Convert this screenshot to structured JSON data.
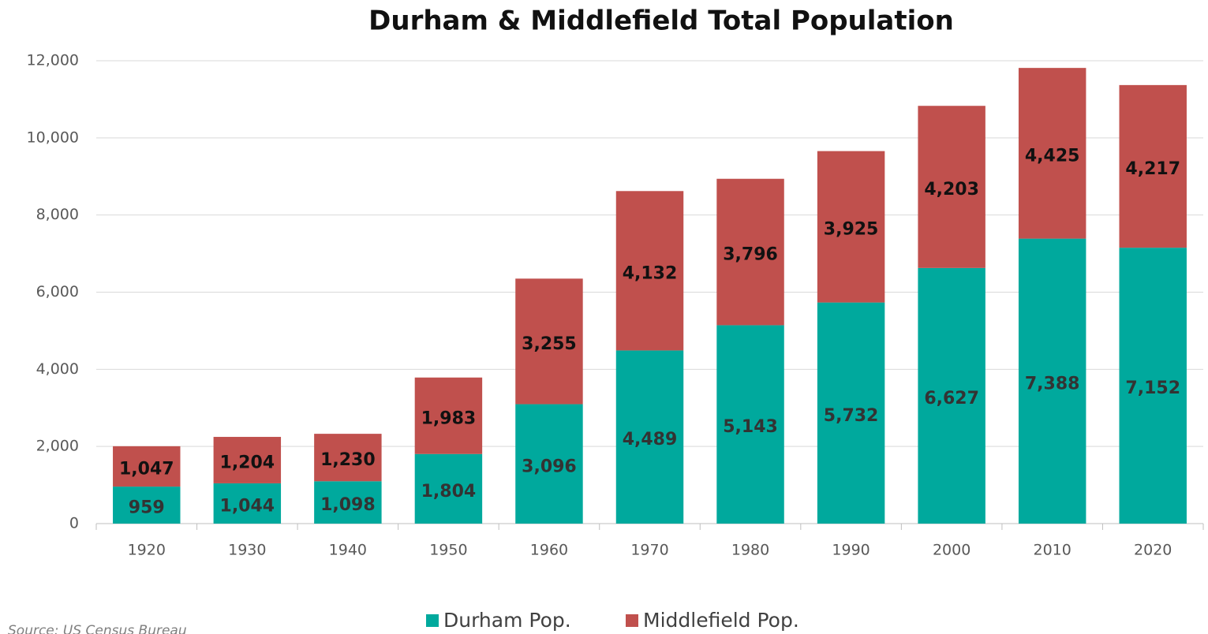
{
  "chart_data": {
    "type": "bar",
    "stacked": true,
    "title": "Durham & Middlefield Total Population",
    "source": "Source: US Census Bureau",
    "categories": [
      "1920",
      "1930",
      "1940",
      "1950",
      "1960",
      "1970",
      "1980",
      "1990",
      "2000",
      "2010",
      "2020"
    ],
    "series": [
      {
        "name": "Durham Pop.",
        "color": "#00a99d",
        "values": [
          959,
          1044,
          1098,
          1804,
          3096,
          4489,
          5143,
          5732,
          6627,
          7388,
          7152
        ],
        "value_labels": [
          "959",
          "1,044",
          "1,098",
          "1,804",
          "3,096",
          "4,489",
          "5,143",
          "5,732",
          "6,627",
          "7,388",
          "7,152"
        ]
      },
      {
        "name": "Middlefield Pop.",
        "color": "#c0504d",
        "values": [
          1047,
          1204,
          1230,
          1983,
          3255,
          4132,
          3796,
          3925,
          4203,
          4425,
          4217
        ],
        "value_labels": [
          "1,047",
          "1,204",
          "1,230",
          "1,983",
          "3,255",
          "4,132",
          "3,796",
          "3,925",
          "4,203",
          "4,425",
          "4,217"
        ]
      }
    ],
    "ylim": [
      0,
      12000
    ],
    "yticks": [
      0,
      {
        "value": 2000,
        "label": "2,000"
      },
      {
        "value": 4000,
        "label": "4,000"
      },
      {
        "value": 6000,
        "label": "6,000"
      },
      {
        "value": 8000,
        "label": "8,000"
      },
      {
        "value": 10000,
        "label": "10,000"
      },
      {
        "value": 12000,
        "label": "12,000"
      }
    ],
    "grid": true,
    "legend": "bottom"
  }
}
